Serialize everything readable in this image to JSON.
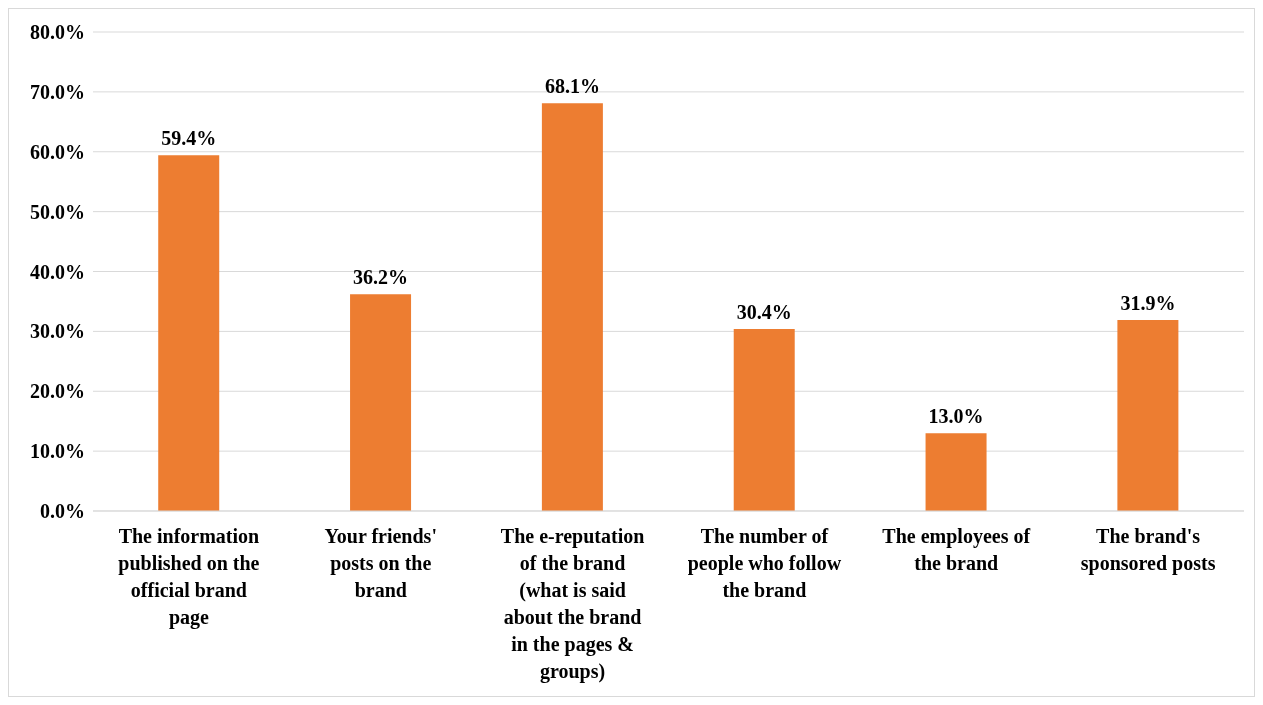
{
  "chart_data": {
    "type": "bar",
    "categories": [
      "The information published on the official brand page",
      "Your friends' posts on the brand",
      "The e-reputation of the brand (what is said about the brand in the pages & groups)",
      "The number of people who follow the brand",
      "The employees of the brand",
      "The brand's sponsored posts"
    ],
    "values": [
      59.4,
      36.2,
      68.1,
      30.4,
      13.0,
      31.9
    ],
    "value_labels": [
      "59.4%",
      "36.2%",
      "68.1%",
      "30.4%",
      "13.0%",
      "31.9%"
    ],
    "color": "#ed7d31",
    "ylim": [
      0,
      80
    ],
    "yticks": [
      {
        "value": 0,
        "label": "0.0%"
      },
      {
        "value": 10,
        "label": "10.0%"
      },
      {
        "value": 20,
        "label": "20.0%"
      },
      {
        "value": 30,
        "label": "30.0%"
      },
      {
        "value": 40,
        "label": "40.0%"
      },
      {
        "value": 50,
        "label": "50.0%"
      },
      {
        "value": 60,
        "label": "60.0%"
      },
      {
        "value": 70,
        "label": "70.0%"
      },
      {
        "value": 80,
        "label": "80.0%"
      }
    ],
    "grid": "y"
  }
}
